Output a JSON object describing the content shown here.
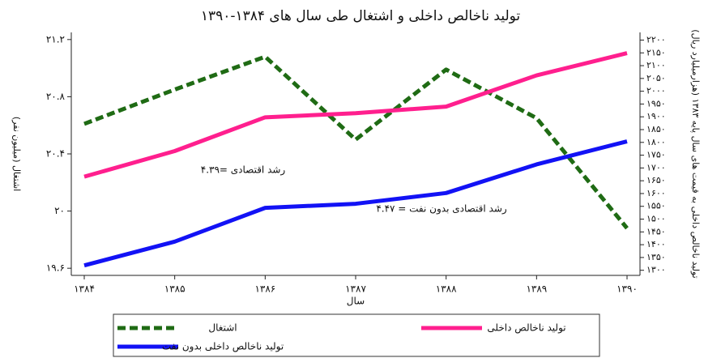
{
  "chart_data": {
    "type": "line",
    "title": "تولید ناخالص داخلی و اشتغال طی سال های ۱۳۸۴-۱۳۹۰",
    "x_label": "سال",
    "y_label": "اشتغال (میلیون نفر)",
    "y2_label": "تولید ناخالص داخلی به قیمت های سال پایه ۱۳۸۳ (هزارمیلیارد ریال)",
    "categories": [
      "۱۳۸۴",
      "۱۳۸۵",
      "۱۳۸۶",
      "۱۳۸۷",
      "۱۳۸۸",
      "۱۳۸۹",
      "۱۳۹۰"
    ],
    "series": [
      {
        "name": "اشتغال",
        "color": "#1f6b14",
        "dashed": true,
        "values": [
          20.61,
          20.85,
          21.08,
          20.5,
          20.99,
          20.65,
          19.88
        ]
      },
      {
        "name": "تولید ناخالص داخلی",
        "color": "#ff1f8e",
        "axis": "y2",
        "values": [
          1666,
          1766,
          1898,
          1914,
          1940,
          2062,
          2149
        ]
      },
      {
        "name": "تولید ناخالص داخلی بدون نفت",
        "color": "#1212f5",
        "axis": "y2",
        "values": [
          1319,
          1412,
          1544,
          1560,
          1602,
          1714,
          1804
        ]
      }
    ],
    "ylim": [
      19.55,
      21.25
    ],
    "yticks": [
      {
        "value": 19.6,
        "label": "۱۹.۶"
      },
      {
        "value": 20,
        "label": "۲۰"
      },
      {
        "value": 20.4,
        "label": "۲۰.۴"
      },
      {
        "value": 20.8,
        "label": "۲۰.۸"
      },
      {
        "value": 21.2,
        "label": "۲۱.۲"
      }
    ],
    "y2lim": [
      1280,
      2230
    ],
    "y2ticks": [
      {
        "value": 1300,
        "label": "۱۳۰۰"
      },
      {
        "value": 1350,
        "label": "۱۳۵۰"
      },
      {
        "value": 1400,
        "label": "۱۴۰۰"
      },
      {
        "value": 1450,
        "label": "۱۴۵۰"
      },
      {
        "value": 1500,
        "label": "۱۵۰۰"
      },
      {
        "value": 1550,
        "label": "۱۵۵۰"
      },
      {
        "value": 1600,
        "label": "۱۶۰۰"
      },
      {
        "value": 1650,
        "label": "۱۶۵۰"
      },
      {
        "value": 1700,
        "label": "۱۷۰۰"
      },
      {
        "value": 1750,
        "label": "۱۷۵۰"
      },
      {
        "value": 1800,
        "label": "۱۸۰۰"
      },
      {
        "value": 1850,
        "label": "۱۸۵۰"
      },
      {
        "value": 1900,
        "label": "۱۹۰۰"
      },
      {
        "value": 1950,
        "label": "۱۹۵۰"
      },
      {
        "value": 2000,
        "label": "۲۰۰۰"
      },
      {
        "value": 2050,
        "label": "۲۰۵۰"
      },
      {
        "value": 2100,
        "label": "۲۱۰۰"
      },
      {
        "value": 2150,
        "label": "۲۱۵۰"
      },
      {
        "value": 2200,
        "label": "۲۲۰۰"
      }
    ],
    "annotations": [
      "رشد اقتصادی =۴.۳۹",
      "رشد اقتصادی بدون نفت = ۴.۴۷"
    ]
  }
}
